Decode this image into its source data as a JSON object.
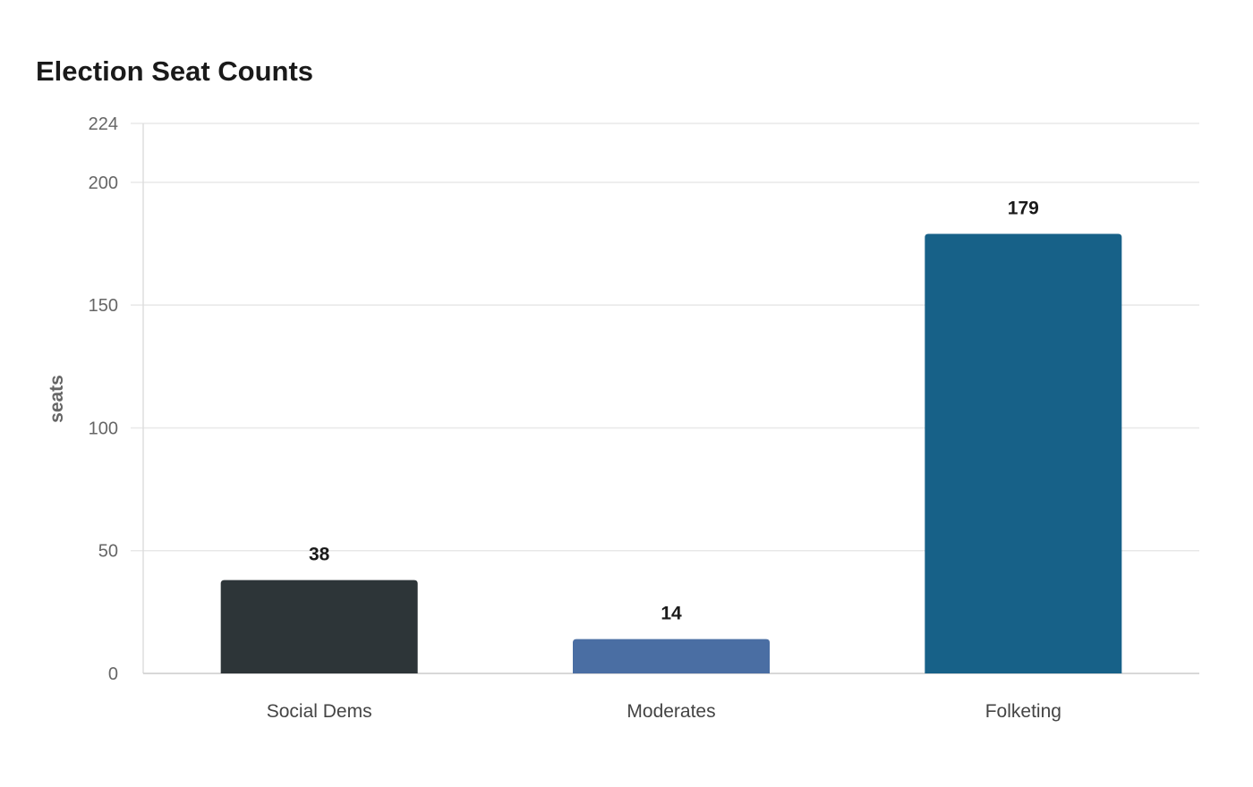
{
  "chart_data": {
    "type": "bar",
    "title": "Election Seat Counts",
    "xlabel": "",
    "ylabel": "seats",
    "categories": [
      "Social Dems",
      "Moderates",
      "Folketing"
    ],
    "values": [
      38,
      14,
      179
    ],
    "data_labels": [
      "38",
      "14",
      "179"
    ],
    "colors": [
      "#2d3538",
      "#4a6ea3",
      "#176188"
    ],
    "ylim": [
      0,
      224
    ],
    "yticks": [
      0,
      50,
      100,
      150,
      200,
      224
    ],
    "ytick_labels": [
      "0",
      "50",
      "100",
      "150",
      "200",
      "224"
    ],
    "grid": true,
    "legend": "none"
  }
}
